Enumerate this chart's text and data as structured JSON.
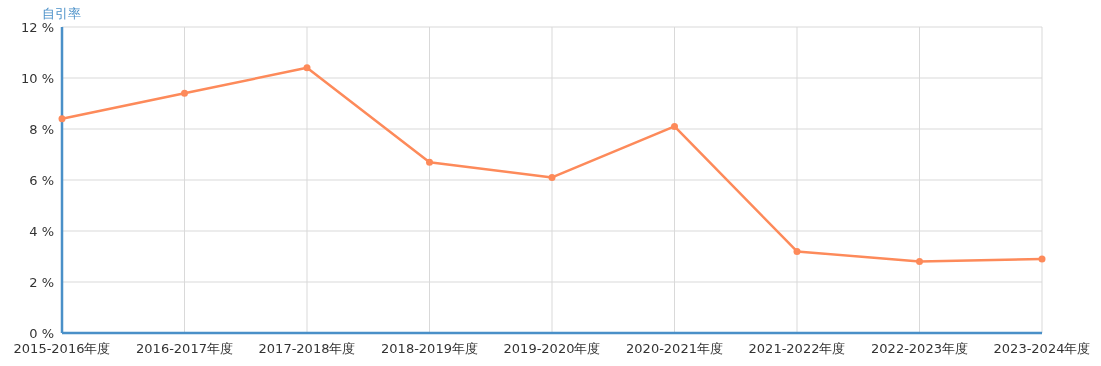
{
  "chart_data": {
    "type": "line",
    "ylabel": "自引率",
    "categories": [
      "2015-2016年度",
      "2016-2017年度",
      "2017-2018年度",
      "2018-2019年度",
      "2019-2020年度",
      "2020-2021年度",
      "2021-2022年度",
      "2022-2023年度",
      "2023-2024年度"
    ],
    "series": [
      {
        "color": "#fd8a5a",
        "values": [
          8.4,
          9.4,
          10.4,
          6.7,
          6.1,
          8.1,
          3.2,
          2.8,
          2.9
        ]
      }
    ],
    "ylim": [
      0,
      12
    ],
    "yticks": [
      {
        "value": 0,
        "label": "0 %"
      },
      {
        "value": 2,
        "label": "2 %"
      },
      {
        "value": 4,
        "label": "4 %"
      },
      {
        "value": 6,
        "label": "6 %"
      },
      {
        "value": 8,
        "label": "8 %"
      },
      {
        "value": 10,
        "label": "10 %"
      },
      {
        "value": 12,
        "label": "12 %"
      }
    ],
    "grid": true,
    "marker": "circle",
    "line_style": "solid"
  }
}
